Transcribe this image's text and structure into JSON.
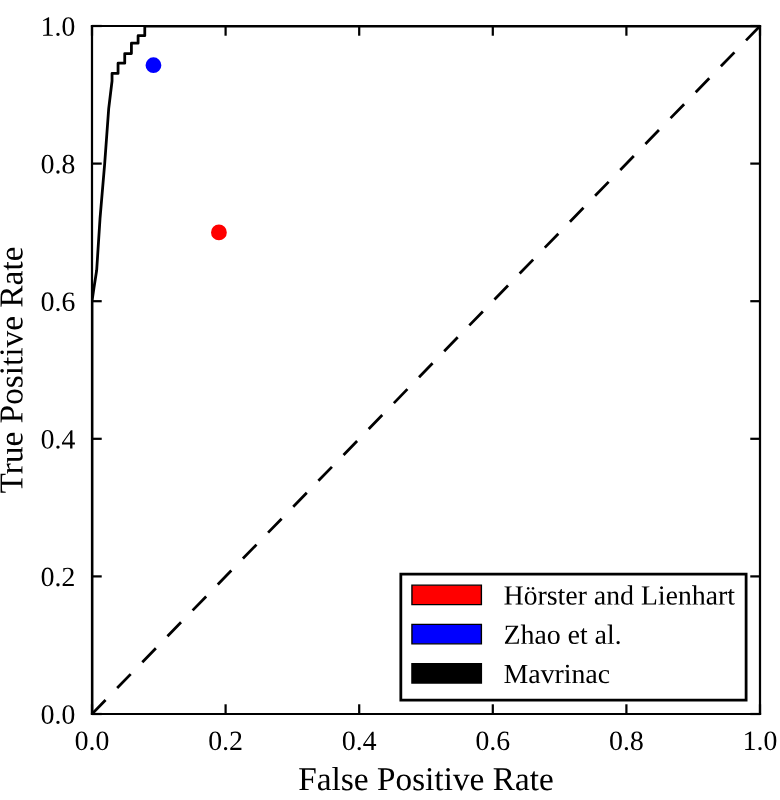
{
  "chart_data": {
    "type": "line",
    "xlabel": "False Positive Rate",
    "ylabel": "True Positive Rate",
    "xlim": [
      0.0,
      1.0
    ],
    "ylim": [
      0.0,
      1.0
    ],
    "xticks": [
      {
        "value": 0,
        "label": "0.0"
      },
      0.2,
      0.4,
      0.6,
      0.8,
      {
        "value": 1,
        "label": "1.0"
      }
    ],
    "yticks": [
      {
        "value": 0,
        "label": "0.0"
      },
      0.2,
      0.4,
      0.6,
      0.8,
      {
        "value": 1,
        "label": "1.0"
      }
    ],
    "grid": false,
    "legend": "bottom right",
    "series": [
      {
        "name": "Hörster and Lienhart",
        "type": "scatter",
        "marker": "circle",
        "color": "#ff0000",
        "x": [
          0.19
        ],
        "values": [
          0.7
        ]
      },
      {
        "name": "Zhao et al.",
        "type": "scatter",
        "marker": "circle",
        "color": "#0000ff",
        "x": [
          0.092
        ],
        "values": [
          0.943
        ]
      },
      {
        "name": "Mavrinac",
        "line_style": "solid",
        "color": "#000000",
        "x": [
          0,
          0,
          0.003,
          0.007,
          0.012,
          0.019,
          0.025,
          0.03,
          0.03,
          0.039,
          0.039,
          0.049,
          0.049,
          0.059,
          0.059,
          0.069,
          0.069,
          0.079,
          0.079,
          0.087,
          1.0
        ],
        "values": [
          0,
          0.6,
          0.62,
          0.645,
          0.72,
          0.8,
          0.88,
          0.92,
          0.931,
          0.931,
          0.946,
          0.946,
          0.96,
          0.96,
          0.975,
          0.975,
          0.986,
          0.986,
          1.0,
          1.0,
          1.0
        ]
      },
      {
        "line_style": "dashed",
        "color": "#000000",
        "x": [
          0,
          1
        ],
        "values": [
          0,
          1
        ]
      }
    ]
  }
}
